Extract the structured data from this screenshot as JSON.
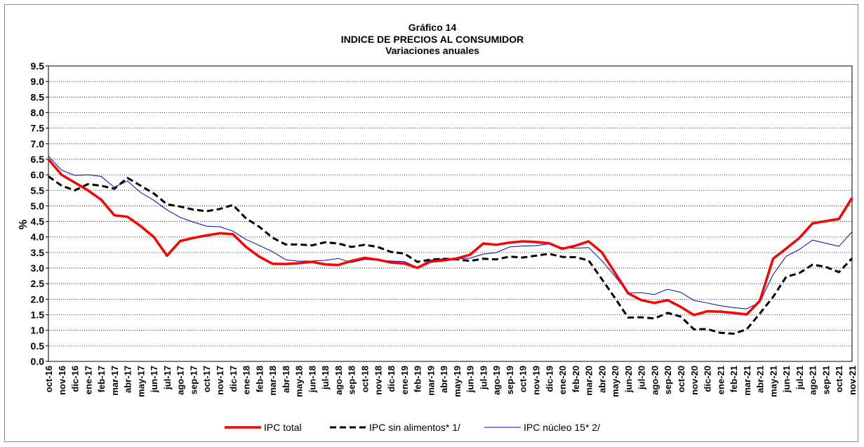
{
  "chart_data": {
    "type": "line",
    "title": "Gráfico 14",
    "subtitle": "INDICE DE PRECIOS AL CONSUMIDOR",
    "subtitle2": "Variaciones anuales",
    "y_label": "%",
    "categories": [
      "oct-16",
      "nov-16",
      "dic-16",
      "ene-17",
      "feb-17",
      "mar-17",
      "abr-17",
      "may-17",
      "jun-17",
      "jul-17",
      "ago-17",
      "sep-17",
      "oct-17",
      "nov-17",
      "dic-17",
      "ene-18",
      "feb-18",
      "mar-18",
      "abr-18",
      "may-18",
      "jun-18",
      "jul-18",
      "ago-18",
      "sep-18",
      "oct-18",
      "nov-18",
      "dic-18",
      "ene-19",
      "feb-19",
      "mar-19",
      "abr-19",
      "may-19",
      "jun-19",
      "jul-19",
      "ago-19",
      "sep-19",
      "oct-19",
      "nov-19",
      "dic-19",
      "ene-20",
      "feb-20",
      "mar-20",
      "abr-20",
      "may-20",
      "jun-20",
      "jul-20",
      "ago-20",
      "sep-20",
      "oct-20",
      "nov-20",
      "dic-20",
      "ene-21",
      "feb-21",
      "mar-21",
      "abr-21",
      "may-21",
      "jun-21",
      "jul-21",
      "ago-21",
      "sep-21",
      "oct-21",
      "nov-21"
    ],
    "series": [
      {
        "name": "IPC total",
        "color": "#ff0000",
        "style": "solid",
        "values": [
          6.5,
          6.0,
          5.75,
          5.5,
          5.2,
          4.7,
          4.65,
          4.35,
          4.0,
          3.4,
          3.87,
          3.97,
          4.05,
          4.12,
          4.09,
          3.68,
          3.37,
          3.14,
          3.13,
          3.16,
          3.2,
          3.12,
          3.1,
          3.23,
          3.33,
          3.27,
          3.18,
          3.15,
          3.01,
          3.21,
          3.25,
          3.31,
          3.43,
          3.79,
          3.75,
          3.82,
          3.86,
          3.84,
          3.8,
          3.62,
          3.72,
          3.86,
          3.51,
          2.85,
          2.19,
          1.97,
          1.88,
          1.97,
          1.75,
          1.49,
          1.61,
          1.6,
          1.56,
          1.51,
          1.95,
          3.3,
          3.63,
          3.97,
          4.44,
          4.51,
          4.58,
          5.26
        ]
      },
      {
        "name": "IPC sin alimentos* 1/",
        "color": "#000000",
        "style": "dashed",
        "values": [
          5.95,
          5.65,
          5.5,
          5.7,
          5.65,
          5.55,
          5.9,
          5.65,
          5.4,
          5.05,
          4.98,
          4.88,
          4.83,
          4.9,
          5.03,
          4.6,
          4.33,
          3.98,
          3.76,
          3.76,
          3.73,
          3.83,
          3.79,
          3.68,
          3.75,
          3.68,
          3.52,
          3.47,
          3.2,
          3.27,
          3.3,
          3.28,
          3.23,
          3.3,
          3.28,
          3.37,
          3.34,
          3.4,
          3.46,
          3.36,
          3.35,
          3.25,
          2.65,
          2.04,
          1.41,
          1.42,
          1.38,
          1.56,
          1.44,
          1.03,
          1.04,
          0.92,
          0.89,
          1.03,
          1.54,
          2.07,
          2.72,
          2.84,
          3.11,
          3.04,
          2.87,
          3.31
        ]
      },
      {
        "name": "IPC núcleo 15* 2/",
        "color": "#0000cc",
        "style": "thin",
        "values": [
          6.6,
          6.15,
          5.98,
          6.0,
          5.95,
          5.6,
          5.8,
          5.43,
          5.18,
          4.87,
          4.63,
          4.48,
          4.35,
          4.33,
          4.19,
          3.92,
          3.73,
          3.53,
          3.27,
          3.22,
          3.23,
          3.25,
          3.31,
          3.18,
          3.28,
          3.25,
          3.23,
          3.21,
          3.03,
          3.26,
          3.3,
          3.3,
          3.32,
          3.45,
          3.5,
          3.68,
          3.71,
          3.72,
          3.78,
          3.66,
          3.64,
          3.66,
          3.24,
          2.74,
          2.2,
          2.21,
          2.15,
          2.32,
          2.22,
          1.96,
          1.88,
          1.79,
          1.73,
          1.69,
          1.9,
          2.79,
          3.38,
          3.6,
          3.9,
          3.8,
          3.7,
          4.17
        ]
      }
    ],
    "ylim": [
      0,
      9.5
    ],
    "yticks": [
      {
        "value": 0,
        "label": "0.0"
      },
      0.5,
      {
        "value": 1,
        "label": "1.0"
      },
      1.5,
      {
        "value": 2,
        "label": "2.0"
      },
      2.5,
      {
        "value": 3,
        "label": "3.0"
      },
      3.5,
      {
        "value": 4,
        "label": "4.0"
      },
      4.5,
      {
        "value": 5,
        "label": "5.0"
      },
      5.5,
      {
        "value": 6,
        "label": "6.0"
      },
      6.5,
      {
        "value": 7,
        "label": "7.0"
      },
      7.5,
      {
        "value": 8,
        "label": "8.0"
      },
      8.5,
      {
        "value": 9,
        "label": "9.0"
      },
      9.5
    ],
    "grid": true,
    "legend": "bottom"
  }
}
